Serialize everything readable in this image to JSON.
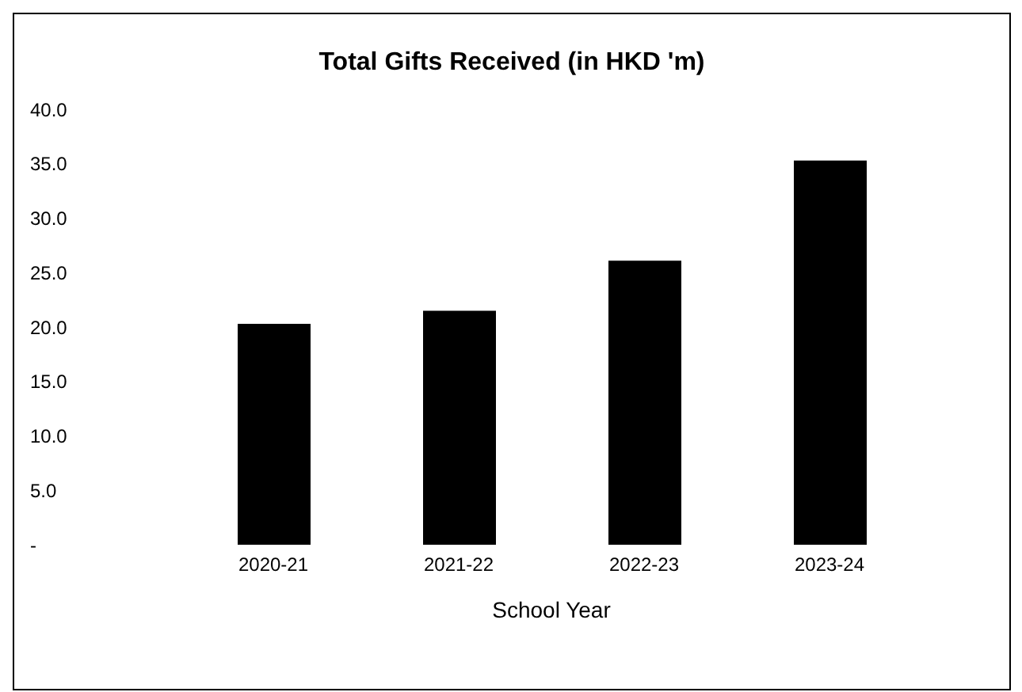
{
  "chart_data": {
    "type": "bar",
    "title": "Total Gifts Received  (in HKD 'm)",
    "xlabel": "School Year",
    "categories": [
      "2020-21",
      "2021-22",
      "2022-23",
      "2023-24"
    ],
    "values": [
      20.3,
      21.5,
      26.1,
      35.3
    ],
    "color": "#000000",
    "ylim": [
      0,
      40
    ],
    "yticks": [
      {
        "value": 0,
        "label": "-"
      },
      {
        "value": 5,
        "label": "5.0"
      },
      {
        "value": 10,
        "label": "10.0"
      },
      {
        "value": 15,
        "label": "15.0"
      },
      {
        "value": 20,
        "label": "20.0"
      },
      {
        "value": 25,
        "label": "25.0"
      },
      {
        "value": 30,
        "label": "30.0"
      },
      {
        "value": 35,
        "label": "35.0"
      },
      {
        "value": 40,
        "label": "40.0"
      }
    ],
    "grid": false,
    "legend": false
  }
}
